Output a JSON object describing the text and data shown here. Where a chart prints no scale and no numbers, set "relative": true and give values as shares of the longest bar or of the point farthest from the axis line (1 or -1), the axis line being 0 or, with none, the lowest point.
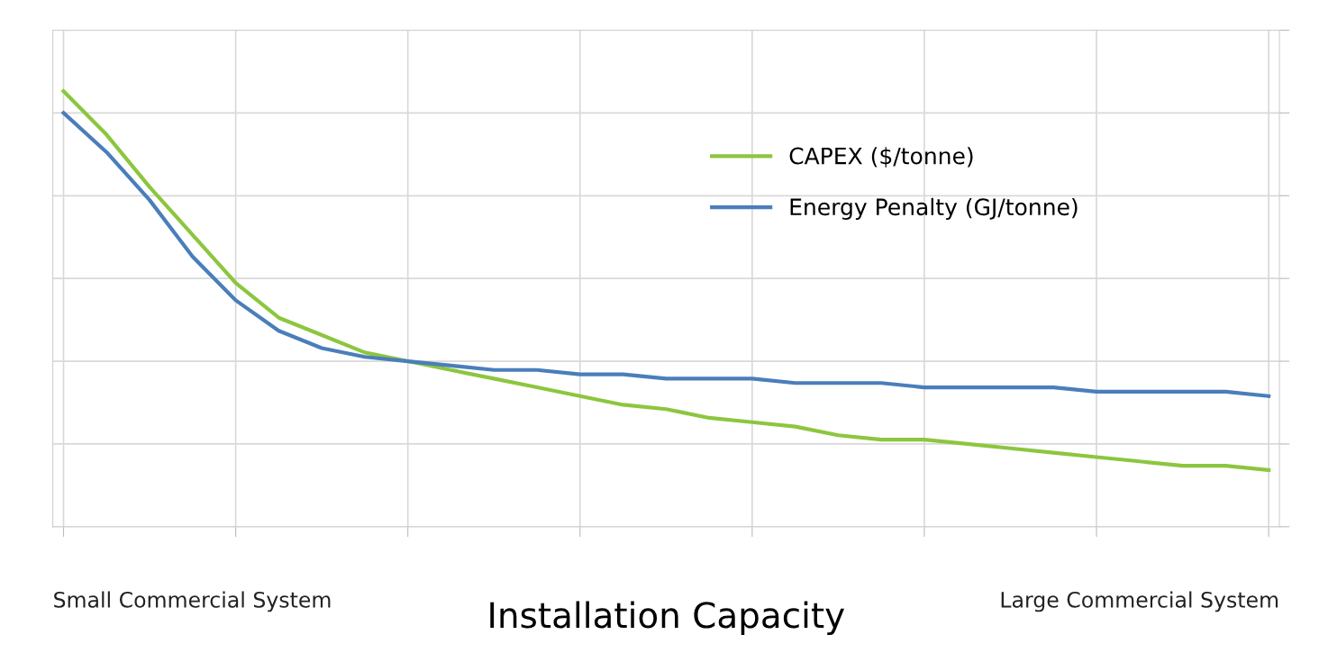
{
  "chart_data": {
    "type": "line",
    "relative": true,
    "xlabel": "Installation Capacity",
    "annotations": [
      "Small Commercial System",
      "Large Commercial System"
    ],
    "categories": [
      null,
      null,
      null,
      null,
      null,
      null,
      null,
      null,
      null,
      null,
      null,
      null,
      null,
      null,
      null,
      null,
      null,
      null,
      null,
      null,
      null,
      null,
      null,
      null,
      null,
      null,
      null,
      null,
      null
    ],
    "series": [
      {
        "name": "CAPEX ($/tonne)",
        "color": "#8cc63f",
        "values": [
          1.0,
          0.9,
          0.78,
          0.67,
          0.56,
          0.48,
          0.44,
          0.4,
          0.38,
          0.36,
          0.34,
          0.32,
          0.3,
          0.28,
          0.27,
          0.25,
          0.24,
          0.23,
          0.21,
          0.2,
          0.2,
          0.19,
          0.18,
          0.17,
          0.16,
          0.15,
          0.14,
          0.14,
          0.13
        ]
      },
      {
        "name": "Energy Penalty (GJ/tonne)",
        "color": "#4a7ebb",
        "values": [
          0.95,
          0.86,
          0.75,
          0.62,
          0.52,
          0.45,
          0.41,
          0.39,
          0.38,
          0.37,
          0.36,
          0.36,
          0.35,
          0.35,
          0.34,
          0.34,
          0.34,
          0.33,
          0.33,
          0.33,
          0.32,
          0.32,
          0.32,
          0.32,
          0.31,
          0.31,
          0.31,
          0.31,
          0.3
        ]
      }
    ],
    "grid": true,
    "legend": "top right",
    "marker": "none",
    "line_style": "solid"
  }
}
